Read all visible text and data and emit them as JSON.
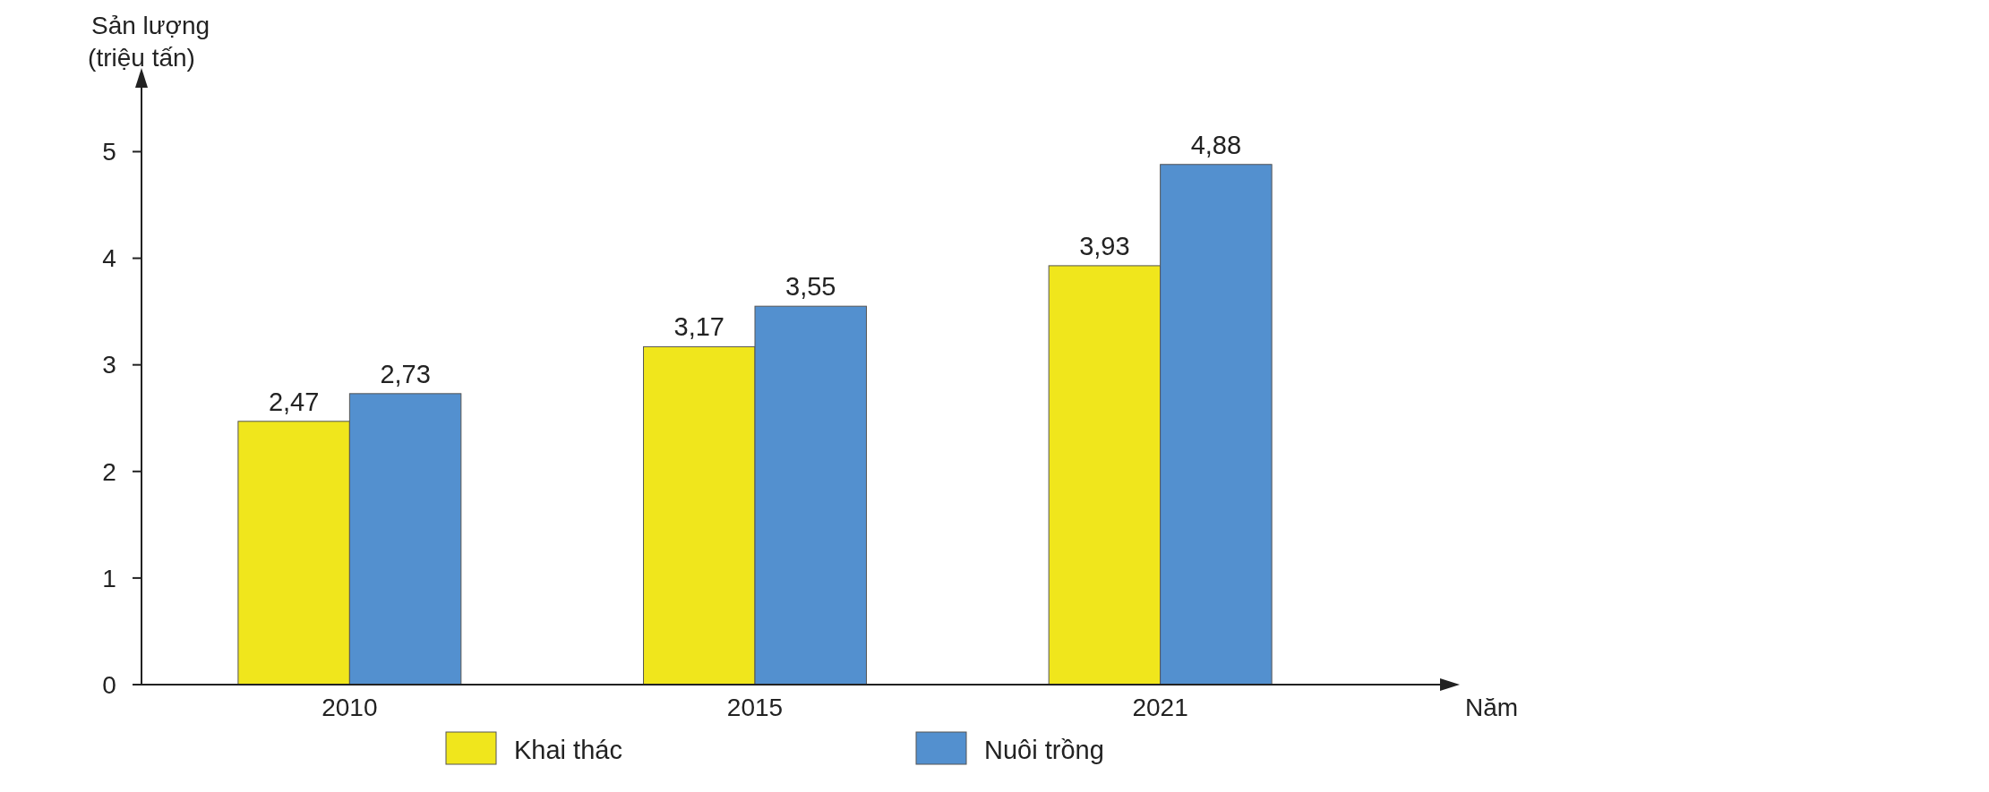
{
  "chart_data": {
    "type": "bar",
    "ylabel": "Sản lượng\n(triệu tấn)",
    "xlabel": "Năm",
    "categories": [
      "2010",
      "2015",
      "2021"
    ],
    "series": [
      {
        "name": "Khai thác",
        "color": "#f0e61c",
        "values": [
          2.47,
          3.17,
          3.93
        ],
        "value_labels": [
          "2,47",
          "3,17",
          "3,93"
        ]
      },
      {
        "name": "Nuôi trồng",
        "color": "#5390cf",
        "values": [
          2.73,
          3.55,
          4.88
        ],
        "value_labels": [
          "2,73",
          "3,55",
          "4,88"
        ]
      }
    ],
    "ylim": [
      0,
      5.6
    ],
    "yticks": [
      0,
      1,
      2,
      3,
      4,
      5
    ],
    "legend": "bottom"
  }
}
